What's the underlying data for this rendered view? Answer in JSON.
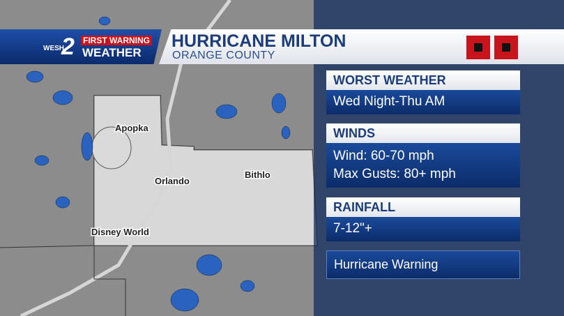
{
  "header": {
    "logo_station": "WESH",
    "logo_number": "2",
    "logo_tag": "FIRST WARNING",
    "logo_title": "WEATHER",
    "title": "HURRICANE MILTON",
    "subtitle": "ORANGE COUNTY"
  },
  "map": {
    "places": [
      "Apopka",
      "Orlando",
      "Bithlo",
      "Disney World"
    ]
  },
  "panels": [
    {
      "heading": "WORST WEATHER",
      "lines": [
        "Wed Night-Thu AM"
      ]
    },
    {
      "heading": "WINDS",
      "lines": [
        "Wind: 60-70 mph",
        "Max Gusts: 80+ mph"
      ]
    },
    {
      "heading": "RAINFALL",
      "lines": [
        "7-12\"+"
      ]
    }
  ],
  "alert": "Hurricane Warning"
}
